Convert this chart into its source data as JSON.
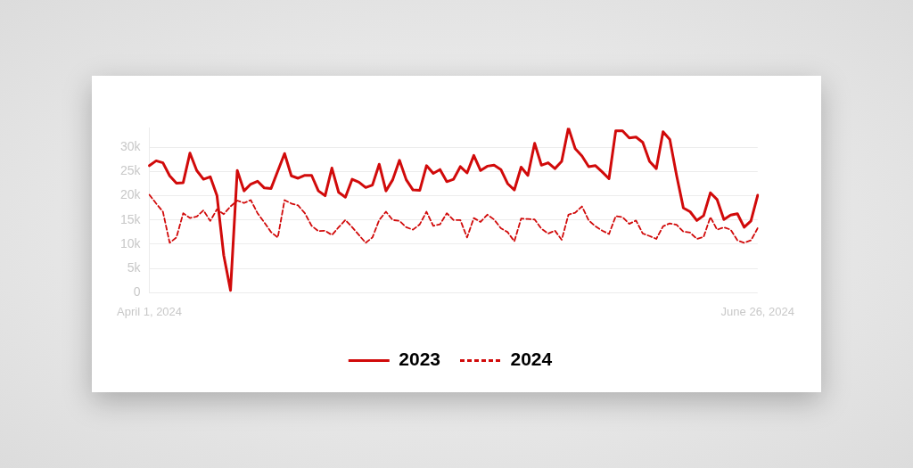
{
  "chart_data": {
    "type": "line",
    "categories": [
      "April 1, 2024",
      null,
      null,
      null,
      null,
      null,
      null,
      null,
      null,
      null,
      null,
      null,
      null,
      null,
      null,
      null,
      null,
      null,
      null,
      null,
      null,
      null,
      null,
      null,
      null,
      null,
      null,
      null,
      null,
      null,
      null,
      null,
      null,
      null,
      null,
      null,
      null,
      null,
      null,
      null,
      null,
      null,
      null,
      null,
      null,
      null,
      null,
      null,
      null,
      null,
      null,
      null,
      null,
      null,
      null,
      null,
      null,
      null,
      null,
      null,
      null,
      null,
      null,
      null,
      null,
      null,
      null,
      null,
      null,
      null,
      null,
      null,
      null,
      null,
      null,
      null,
      null,
      null,
      null,
      null,
      null,
      null,
      null,
      null,
      null,
      null,
      null,
      null,
      null,
      null,
      "June 26, 2024"
    ],
    "series": [
      {
        "name": "2023",
        "color": "#d10a0a",
        "line_style": "solid",
        "values": [
          26200,
          27200,
          26800,
          24100,
          22600,
          22700,
          28800,
          25200,
          23400,
          23900,
          20000,
          7700,
          500,
          25200,
          21000,
          22400,
          23000,
          21600,
          21500,
          25100,
          28700,
          24100,
          23600,
          24200,
          24200,
          21000,
          20000,
          25700,
          20700,
          19700,
          23400,
          22800,
          21700,
          22200,
          26500,
          21000,
          23300,
          27300,
          23300,
          21200,
          21100,
          26200,
          24600,
          25400,
          22900,
          23400,
          26000,
          24700,
          28300,
          25200,
          26100,
          26300,
          25400,
          22500,
          21200,
          25900,
          24200,
          30800,
          26300,
          26800,
          25600,
          27100,
          34000,
          29700,
          28200,
          26000,
          26200,
          24900,
          23500,
          33400,
          33400,
          31900,
          32100,
          31000,
          27100,
          25600,
          33200,
          31600,
          24200,
          17500,
          16700,
          14900,
          15900,
          20600,
          19200,
          15100,
          16000,
          16300,
          13500,
          14800,
          20100
        ]
      },
      {
        "name": "2024",
        "color": "#d10a0a",
        "line_style": "dashed",
        "values": [
          20200,
          18400,
          16700,
          10300,
          11400,
          16400,
          15400,
          15700,
          17000,
          14800,
          17200,
          16200,
          17800,
          19000,
          18500,
          19100,
          16400,
          14500,
          12500,
          11400,
          19100,
          18400,
          18000,
          16400,
          13800,
          12700,
          12800,
          11900,
          13500,
          15000,
          13500,
          11900,
          10300,
          11400,
          15000,
          16700,
          15000,
          14800,
          13500,
          13000,
          14100,
          16700,
          13800,
          14100,
          16400,
          15000,
          15000,
          11400,
          15400,
          14600,
          16100,
          15100,
          13300,
          12500,
          10600,
          15300,
          15200,
          15100,
          13200,
          12200,
          12800,
          10900,
          16100,
          16500,
          17800,
          14900,
          13700,
          12800,
          12100,
          15800,
          15600,
          14200,
          14900,
          12200,
          11700,
          11100,
          13700,
          14300,
          14000,
          12600,
          12400,
          11100,
          11500,
          15600,
          13000,
          13500,
          13000,
          10800,
          10300,
          10800,
          13300
        ]
      }
    ],
    "ylim": [
      0,
      34000
    ],
    "yticks": [
      0,
      {
        "value": 5000,
        "label": "5k"
      },
      {
        "value": 10000,
        "label": "10k"
      },
      {
        "value": 15000,
        "label": "15k"
      },
      {
        "value": 20000,
        "label": "20k"
      },
      {
        "value": 25000,
        "label": "25k"
      },
      {
        "value": 30000,
        "label": "30k"
      }
    ],
    "grid": "y",
    "legend": "bottom",
    "marker": "none"
  }
}
